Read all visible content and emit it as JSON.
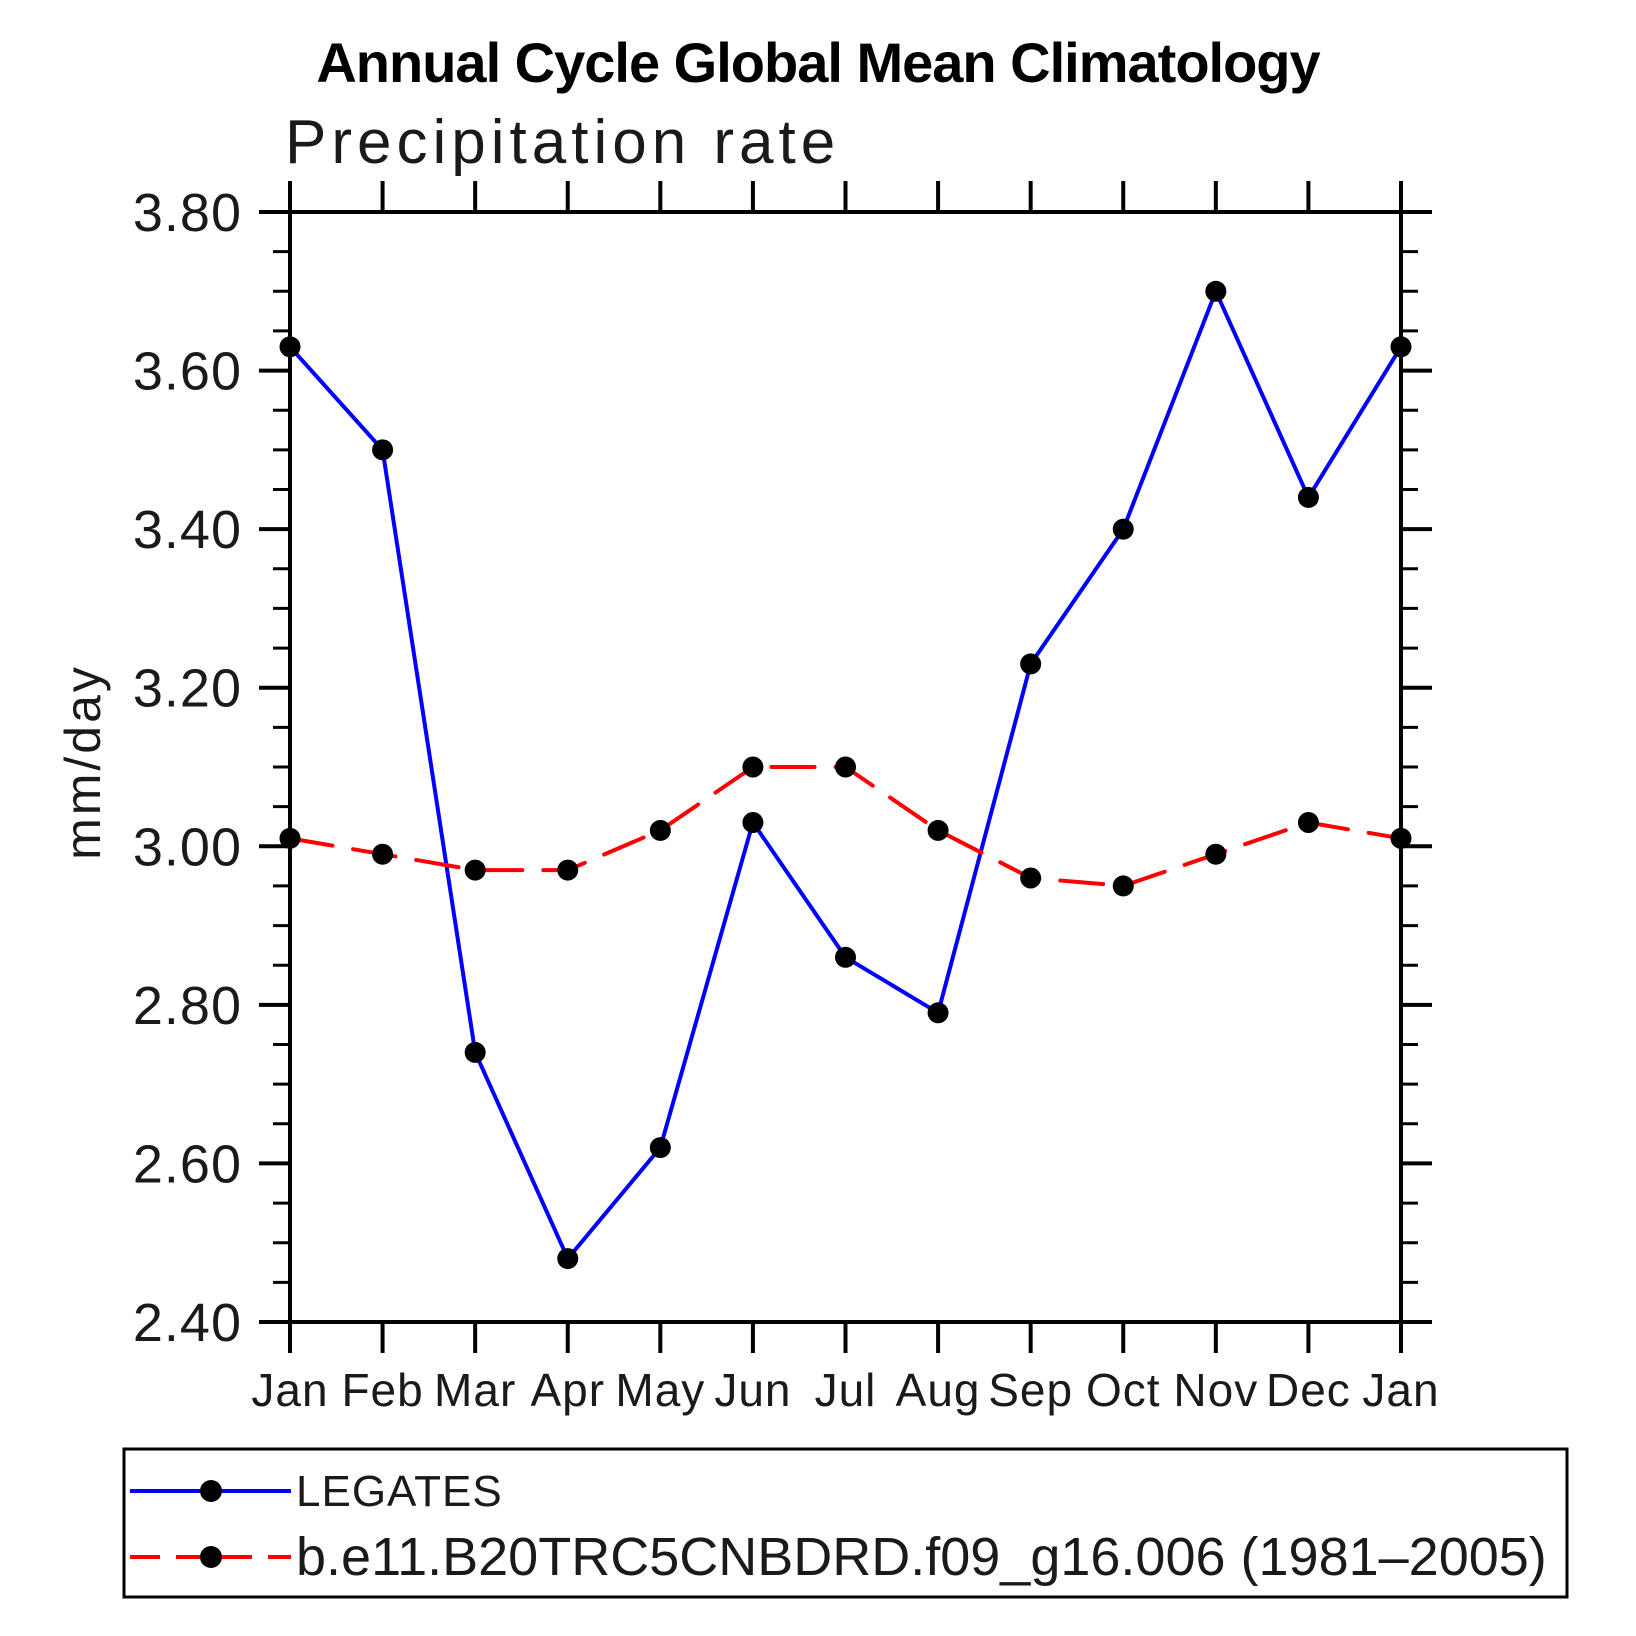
{
  "chart": {
    "title": "Annual Cycle Global Mean Climatology",
    "subtitle": "Precipitation rate",
    "ylabel": "mm/day"
  },
  "chart_data": {
    "type": "line",
    "title": "Annual Cycle Global Mean Climatology",
    "subtitle": "Precipitation rate",
    "xlabel": "",
    "ylabel": "mm/day",
    "categories": [
      "Jan",
      "Feb",
      "Mar",
      "Apr",
      "May",
      "Jun",
      "Jul",
      "Aug",
      "Sep",
      "Oct",
      "Nov",
      "Dec",
      "Jan"
    ],
    "series": [
      {
        "name": "LEGATES",
        "line_style": "solid",
        "color": "#0000ff",
        "marker": "circle",
        "marker_color": "#000000",
        "values": [
          3.63,
          3.5,
          2.74,
          2.48,
          2.62,
          3.03,
          2.86,
          2.79,
          3.23,
          3.4,
          3.7,
          3.44,
          3.63
        ]
      },
      {
        "name": "b.e11.B20TRC5CNBDRD.f09_g16.006 (1981–2005)",
        "line_style": "dashed",
        "color": "#ff0000",
        "marker": "circle",
        "marker_color": "#000000",
        "values": [
          3.01,
          2.99,
          2.97,
          2.97,
          3.02,
          3.1,
          3.1,
          3.02,
          2.96,
          2.95,
          2.99,
          3.03,
          3.01
        ]
      }
    ],
    "ylim": [
      2.4,
      3.8
    ],
    "y_major_step": 0.2,
    "y_minor_step": 0.05,
    "y_tick_labels": [
      "2.40",
      "2.60",
      "2.80",
      "3.00",
      "3.20",
      "3.40",
      "3.60",
      "3.80"
    ],
    "grid": false,
    "frame": "box",
    "tick_direction": "out",
    "legend_position": "bottom-left-box",
    "axis_color": "#000000",
    "text_color": "#1a1a1a"
  }
}
